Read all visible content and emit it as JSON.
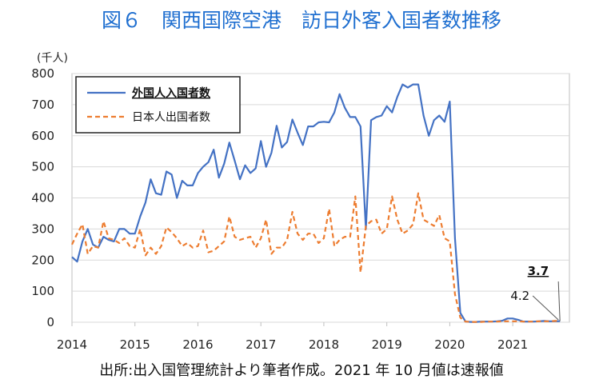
{
  "title": "図６　関西国際空港　訪日外客入国者数推移",
  "unit_label": "(千人)",
  "source_note": "出所:出入国管理統計より筆者作成。2021 年 10 月値は速報値",
  "chart_data": {
    "type": "line",
    "ylim": [
      0,
      800
    ],
    "yticks": [
      "0",
      "100",
      "200",
      "300",
      "400",
      "500",
      "600",
      "700",
      "800"
    ],
    "xlim": [
      2014,
      2021.9
    ],
    "xticks": [
      "2014",
      "2015",
      "2016",
      "2017",
      "2018",
      "2019",
      "2020",
      "2021"
    ],
    "grid": "horizontal",
    "legend_position": "top-left",
    "series": [
      {
        "name": "外国人入国者数",
        "color": "#4472c4",
        "dash": "solid",
        "x": [
          2014.0,
          2014.083,
          2014.167,
          2014.25,
          2014.333,
          2014.417,
          2014.5,
          2014.583,
          2014.667,
          2014.75,
          2014.833,
          2014.917,
          2015.0,
          2015.083,
          2015.167,
          2015.25,
          2015.333,
          2015.417,
          2015.5,
          2015.583,
          2015.667,
          2015.75,
          2015.833,
          2015.917,
          2016.0,
          2016.083,
          2016.167,
          2016.25,
          2016.333,
          2016.417,
          2016.5,
          2016.583,
          2016.667,
          2016.75,
          2016.833,
          2016.917,
          2017.0,
          2017.083,
          2017.167,
          2017.25,
          2017.333,
          2017.417,
          2017.5,
          2017.583,
          2017.667,
          2017.75,
          2017.833,
          2017.917,
          2018.0,
          2018.083,
          2018.167,
          2018.25,
          2018.333,
          2018.417,
          2018.5,
          2018.583,
          2018.667,
          2018.75,
          2018.833,
          2018.917,
          2019.0,
          2019.083,
          2019.167,
          2019.25,
          2019.333,
          2019.417,
          2019.5,
          2019.583,
          2019.667,
          2019.75,
          2019.833,
          2019.917,
          2020.0,
          2020.083,
          2020.167,
          2020.25,
          2020.333,
          2020.417,
          2020.5,
          2020.583,
          2020.667,
          2020.75,
          2020.833,
          2020.917,
          2021.0,
          2021.083,
          2021.167,
          2021.25,
          2021.333,
          2021.417,
          2021.5,
          2021.583,
          2021.667,
          2021.75
        ],
        "values": [
          210,
          195,
          260,
          300,
          250,
          240,
          275,
          265,
          260,
          300,
          300,
          285,
          285,
          340,
          385,
          460,
          415,
          410,
          485,
          475,
          400,
          455,
          440,
          440,
          480,
          500,
          515,
          555,
          465,
          510,
          578,
          520,
          460,
          505,
          480,
          495,
          583,
          500,
          545,
          632,
          562,
          580,
          652,
          610,
          570,
          630,
          630,
          643,
          645,
          643,
          675,
          734,
          690,
          660,
          660,
          630,
          300,
          650,
          660,
          665,
          695,
          675,
          725,
          765,
          755,
          765,
          765,
          665,
          600,
          650,
          665,
          645,
          710,
          270,
          30,
          2,
          1,
          1,
          2,
          2,
          2,
          3,
          5,
          12,
          12,
          8,
          2,
          2,
          2,
          3,
          4,
          3,
          3,
          3.7
        ]
      },
      {
        "name": "日本人出国者数",
        "color": "#ed7d31",
        "dash": "dashed",
        "x": [
          2014.0,
          2014.083,
          2014.167,
          2014.25,
          2014.333,
          2014.417,
          2014.5,
          2014.583,
          2014.667,
          2014.75,
          2014.833,
          2014.917,
          2015.0,
          2015.083,
          2015.167,
          2015.25,
          2015.333,
          2015.417,
          2015.5,
          2015.583,
          2015.667,
          2015.75,
          2015.833,
          2015.917,
          2016.0,
          2016.083,
          2016.167,
          2016.25,
          2016.333,
          2016.417,
          2016.5,
          2016.583,
          2016.667,
          2016.75,
          2016.833,
          2016.917,
          2017.0,
          2017.083,
          2017.167,
          2017.25,
          2017.333,
          2017.417,
          2017.5,
          2017.583,
          2017.667,
          2017.75,
          2017.833,
          2017.917,
          2018.0,
          2018.083,
          2018.167,
          2018.25,
          2018.333,
          2018.417,
          2018.5,
          2018.583,
          2018.667,
          2018.75,
          2018.833,
          2018.917,
          2019.0,
          2019.083,
          2019.167,
          2019.25,
          2019.333,
          2019.417,
          2019.5,
          2019.583,
          2019.667,
          2019.75,
          2019.833,
          2019.917,
          2020.0,
          2020.083,
          2020.167,
          2020.25,
          2020.333,
          2020.417,
          2020.5,
          2020.583,
          2020.667,
          2020.75,
          2020.833,
          2020.917,
          2021.0,
          2021.083,
          2021.167,
          2021.25,
          2021.333,
          2021.417,
          2021.5,
          2021.583,
          2021.667,
          2021.75
        ],
        "values": [
          250,
          285,
          315,
          220,
          245,
          240,
          325,
          270,
          265,
          255,
          270,
          245,
          240,
          300,
          215,
          240,
          220,
          245,
          305,
          290,
          270,
          245,
          255,
          240,
          245,
          295,
          225,
          230,
          245,
          260,
          340,
          275,
          265,
          270,
          275,
          240,
          270,
          330,
          220,
          240,
          240,
          265,
          355,
          285,
          265,
          285,
          285,
          255,
          270,
          365,
          245,
          265,
          275,
          275,
          405,
          160,
          310,
          325,
          330,
          285,
          300,
          405,
          330,
          285,
          295,
          315,
          415,
          330,
          320,
          310,
          345,
          270,
          260,
          90,
          15,
          2,
          1,
          1,
          1,
          2,
          2,
          2,
          3,
          3,
          3,
          3,
          2,
          2,
          2,
          3,
          3,
          3,
          4,
          4.2
        ]
      }
    ],
    "annotations": [
      {
        "text": "3.7",
        "series": "外国人入国者数",
        "style": "bold-underline"
      },
      {
        "text": "4.2",
        "series": "日本人出国者数",
        "style": "normal"
      }
    ]
  }
}
